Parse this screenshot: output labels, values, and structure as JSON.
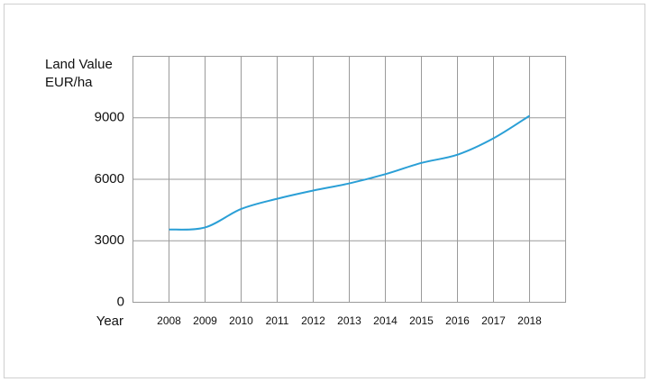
{
  "chart_data": {
    "type": "line",
    "y_label": [
      "Land Value",
      "EUR/ha"
    ],
    "x_label": "Year",
    "x": [
      2008,
      2009,
      2010,
      2011,
      2012,
      2013,
      2014,
      2015,
      2016,
      2017,
      2018
    ],
    "series": [
      {
        "name": "Land Value",
        "color": "#2a9fd6",
        "values": [
          3550,
          3650,
          4550,
          5050,
          5450,
          5800,
          6250,
          6800,
          7200,
          8000,
          9100
        ]
      }
    ],
    "xlim": [
      2007,
      2019
    ],
    "xticks": [
      2008,
      2009,
      2010,
      2011,
      2012,
      2013,
      2014,
      2015,
      2016,
      2017,
      2018
    ],
    "ylim": [
      0,
      12000
    ],
    "yticks": [
      0,
      3000,
      6000,
      9000
    ],
    "grid": true
  }
}
